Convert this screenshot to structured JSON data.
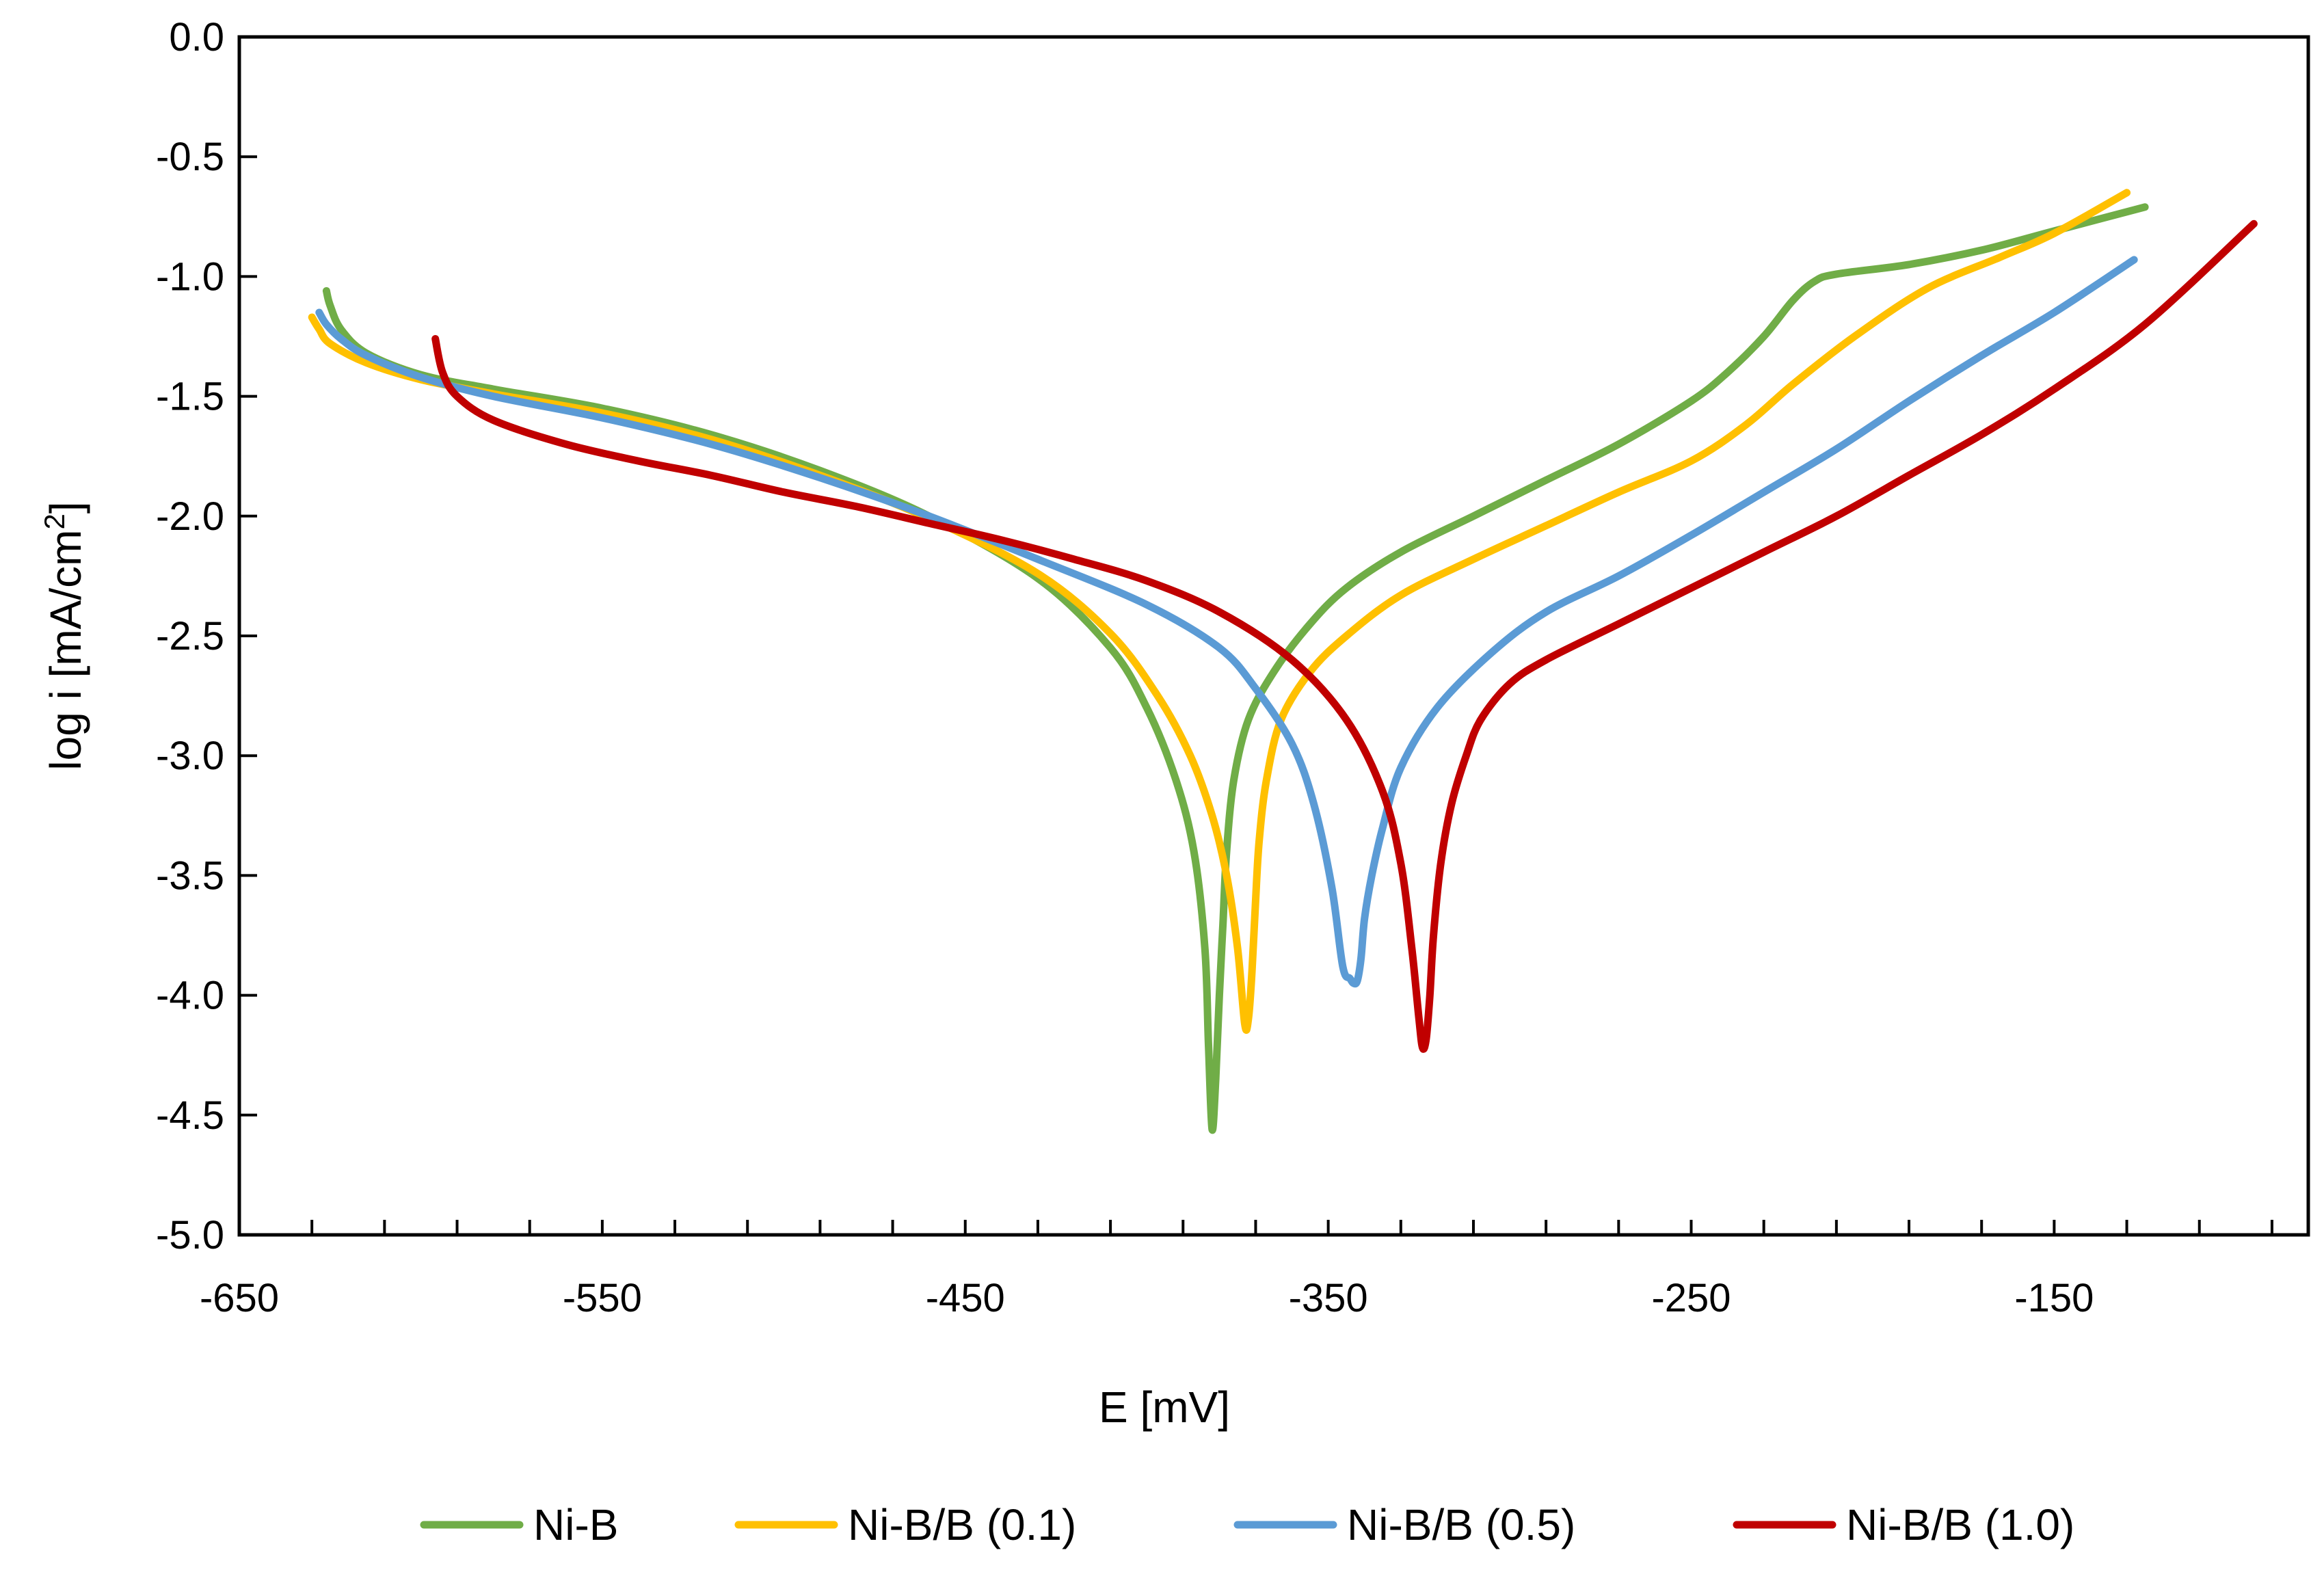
{
  "chart_data": {
    "type": "line",
    "title": "",
    "xlabel": "E [mV]",
    "ylabel_main": "log i [mA/cm",
    "ylabel_sup": "2",
    "ylabel_tail": "]",
    "xlim": [
      -650,
      -80
    ],
    "ylim": [
      -5.0,
      0.0
    ],
    "x_ticks": [
      -650,
      -550,
      -450,
      -350,
      -250,
      -150
    ],
    "x_tick_labels": [
      "-650",
      "-550",
      "-450",
      "-350",
      "-250",
      "-150"
    ],
    "x_minor_step": 20,
    "y_ticks": [
      0.0,
      -0.5,
      -1.0,
      -1.5,
      -2.0,
      -2.5,
      -3.0,
      -3.5,
      -4.0,
      -4.5,
      -5.0
    ],
    "y_tick_labels": [
      "0.0",
      "-0.5",
      "-1.0",
      "-1.5",
      "-2.0",
      "-2.5",
      "-3.0",
      "-3.5",
      "-4.0",
      "-4.5",
      "-5.0"
    ],
    "grid": false,
    "legend_position": "bottom",
    "series": [
      {
        "name": "Ni-B",
        "color": "#70AD47",
        "x": [
          -626,
          -625,
          -622,
          -615,
          -600,
          -580,
          -550,
          -520,
          -490,
          -460,
          -430,
          -410,
          -400,
          -392,
          -387,
          -384,
          -383,
          -382,
          -381,
          -380,
          -379,
          -378,
          -376,
          -372,
          -365,
          -355,
          -345,
          -330,
          -310,
          -290,
          -270,
          -250,
          -240,
          -230,
          -222,
          -216,
          -210,
          -190,
          -170,
          -150,
          -125
        ],
        "y": [
          -1.06,
          -1.12,
          -1.22,
          -1.32,
          -1.41,
          -1.47,
          -1.55,
          -1.66,
          -1.81,
          -2.0,
          -2.26,
          -2.55,
          -2.8,
          -3.1,
          -3.4,
          -3.8,
          -4.2,
          -4.56,
          -4.35,
          -4.0,
          -3.7,
          -3.4,
          -3.1,
          -2.85,
          -2.65,
          -2.45,
          -2.3,
          -2.15,
          -2.0,
          -1.85,
          -1.7,
          -1.52,
          -1.4,
          -1.25,
          -1.1,
          -1.02,
          -0.99,
          -0.95,
          -0.89,
          -0.81,
          -0.71
        ]
      },
      {
        "name": "Ni-B/B (0.1)",
        "color": "#FFC000",
        "x": [
          -630,
          -628,
          -625,
          -615,
          -600,
          -580,
          -550,
          -520,
          -490,
          -460,
          -430,
          -410,
          -397,
          -388,
          -382,
          -378,
          -375,
          -373,
          -372,
          -371,
          -370,
          -369,
          -367,
          -363,
          -355,
          -345,
          -330,
          -310,
          -290,
          -270,
          -250,
          -235,
          -222,
          -205,
          -185,
          -165,
          -150,
          -130
        ],
        "y": [
          -1.17,
          -1.22,
          -1.28,
          -1.36,
          -1.43,
          -1.49,
          -1.57,
          -1.68,
          -1.83,
          -2.01,
          -2.24,
          -2.49,
          -2.75,
          -3.0,
          -3.25,
          -3.5,
          -3.8,
          -4.12,
          -4.1,
          -3.9,
          -3.6,
          -3.35,
          -3.1,
          -2.85,
          -2.65,
          -2.5,
          -2.33,
          -2.18,
          -2.04,
          -1.9,
          -1.77,
          -1.62,
          -1.45,
          -1.25,
          -1.05,
          -0.92,
          -0.82,
          -0.65
        ]
      },
      {
        "name": "Ni-B/B (0.5)",
        "color": "#5B9BD5",
        "x": [
          -628,
          -626,
          -622,
          -615,
          -600,
          -580,
          -550,
          -520,
          -490,
          -460,
          -430,
          -400,
          -380,
          -370,
          -360,
          -354,
          -349,
          -346,
          -344,
          -343,
          -342,
          -341,
          -340,
          -338,
          -335,
          -330,
          -320,
          -305,
          -290,
          -270,
          -250,
          -230,
          -210,
          -190,
          -170,
          -150,
          -128
        ],
        "y": [
          -1.15,
          -1.2,
          -1.26,
          -1.33,
          -1.42,
          -1.5,
          -1.59,
          -1.7,
          -1.84,
          -2.0,
          -2.18,
          -2.37,
          -2.55,
          -2.72,
          -2.95,
          -3.2,
          -3.55,
          -3.88,
          -3.93,
          -3.95,
          -3.94,
          -3.85,
          -3.68,
          -3.5,
          -3.3,
          -3.05,
          -2.8,
          -2.57,
          -2.4,
          -2.25,
          -2.08,
          -1.9,
          -1.72,
          -1.52,
          -1.33,
          -1.15,
          -0.93
        ]
      },
      {
        "name": "Ni-B/B (1.0)",
        "color": "#C00000",
        "x": [
          -596,
          -594,
          -590,
          -580,
          -560,
          -540,
          -520,
          -500,
          -480,
          -460,
          -440,
          -420,
          -400,
          -380,
          -360,
          -345,
          -335,
          -330,
          -327,
          -325,
          -324,
          -323,
          -322,
          -321,
          -319,
          -316,
          -312,
          -308,
          -300,
          -290,
          -270,
          -250,
          -230,
          -210,
          -190,
          -170,
          -150,
          -125,
          -95
        ],
        "y": [
          -1.26,
          -1.4,
          -1.5,
          -1.6,
          -1.7,
          -1.77,
          -1.83,
          -1.9,
          -1.96,
          -2.03,
          -2.1,
          -2.18,
          -2.27,
          -2.4,
          -2.6,
          -2.85,
          -3.15,
          -3.45,
          -3.8,
          -4.1,
          -4.22,
          -4.18,
          -4.0,
          -3.75,
          -3.45,
          -3.2,
          -3.0,
          -2.85,
          -2.7,
          -2.6,
          -2.45,
          -2.3,
          -2.15,
          -2.0,
          -1.83,
          -1.66,
          -1.47,
          -1.2,
          -0.78
        ]
      }
    ]
  }
}
